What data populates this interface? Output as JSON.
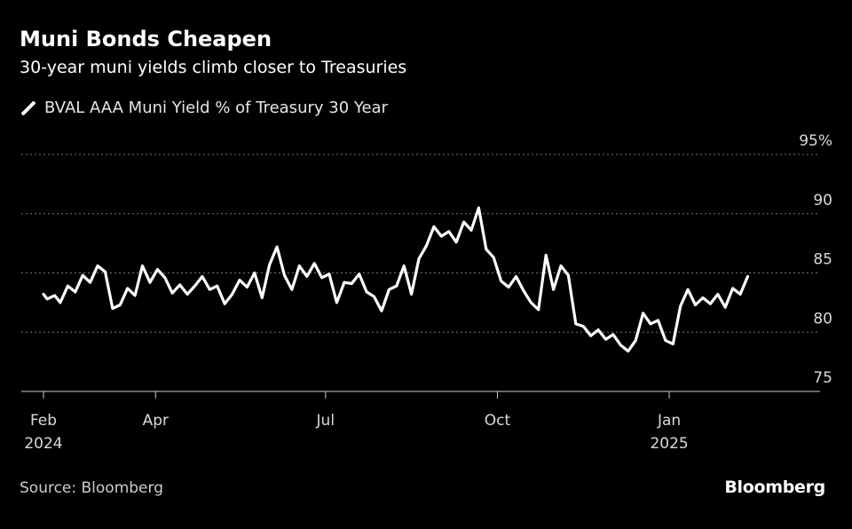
{
  "header": {
    "title": "Muni Bonds Cheapen",
    "subtitle": "30-year muni yields climb closer to Treasuries"
  },
  "legend": {
    "label": "BVAL AAA Muni Yield % of Treasury 30 Year"
  },
  "footer": {
    "source": "Source: Bloomberg",
    "brand": "Bloomberg"
  },
  "colors": {
    "background": "#000000",
    "line": "#ffffff",
    "grid": "#777777",
    "text": "#ffffff"
  },
  "chart_data": {
    "type": "line",
    "title": "Muni Bonds Cheapen",
    "subtitle": "30-year muni yields climb closer to Treasuries",
    "xlabel": "",
    "ylabel": "",
    "ylim": [
      75,
      95
    ],
    "xlim": [
      "2024-02-01",
      "2025-02-17"
    ],
    "y_ticks": [
      {
        "value": 95,
        "label": "95%"
      },
      {
        "value": 90,
        "label": "90"
      },
      {
        "value": 85,
        "label": "85"
      },
      {
        "value": 80,
        "label": "80"
      },
      {
        "value": 75,
        "label": "75"
      }
    ],
    "x_ticks": [
      {
        "date": "2024-02-01",
        "line1": "Feb",
        "line2": "2024"
      },
      {
        "date": "2024-04-01",
        "line1": "Apr",
        "line2": ""
      },
      {
        "date": "2024-07-01",
        "line1": "Jul",
        "line2": ""
      },
      {
        "date": "2024-10-01",
        "line1": "Oct",
        "line2": ""
      },
      {
        "date": "2025-01-01",
        "line1": "Jan",
        "line2": "2025"
      }
    ],
    "grid": "horizontal dotted",
    "legend_position": "top-left",
    "series": [
      {
        "name": "BVAL AAA Muni Yield % of Treasury 30 Year",
        "points": [
          [
            "2024-02-01",
            83.2
          ],
          [
            "2024-02-03",
            82.8
          ],
          [
            "2024-02-07",
            83.1
          ],
          [
            "2024-02-10",
            82.5
          ],
          [
            "2024-02-14",
            83.9
          ],
          [
            "2024-02-18",
            83.4
          ],
          [
            "2024-02-22",
            84.8
          ],
          [
            "2024-02-26",
            84.2
          ],
          [
            "2024-03-01",
            85.6
          ],
          [
            "2024-03-05",
            85.1
          ],
          [
            "2024-03-09",
            82.0
          ],
          [
            "2024-03-13",
            82.3
          ],
          [
            "2024-03-17",
            83.7
          ],
          [
            "2024-03-21",
            83.1
          ],
          [
            "2024-03-25",
            85.6
          ],
          [
            "2024-03-29",
            84.2
          ],
          [
            "2024-04-02",
            85.3
          ],
          [
            "2024-04-06",
            84.6
          ],
          [
            "2024-04-10",
            83.3
          ],
          [
            "2024-04-14",
            84.0
          ],
          [
            "2024-04-18",
            83.2
          ],
          [
            "2024-04-22",
            83.9
          ],
          [
            "2024-04-26",
            84.7
          ],
          [
            "2024-04-30",
            83.6
          ],
          [
            "2024-05-04",
            83.9
          ],
          [
            "2024-05-08",
            82.4
          ],
          [
            "2024-05-12",
            83.2
          ],
          [
            "2024-05-16",
            84.4
          ],
          [
            "2024-05-20",
            83.8
          ],
          [
            "2024-05-24",
            85.0
          ],
          [
            "2024-05-28",
            82.9
          ],
          [
            "2024-06-01",
            85.7
          ],
          [
            "2024-06-05",
            87.2
          ],
          [
            "2024-06-09",
            84.8
          ],
          [
            "2024-06-13",
            83.6
          ],
          [
            "2024-06-17",
            85.6
          ],
          [
            "2024-06-21",
            84.7
          ],
          [
            "2024-06-25",
            85.8
          ],
          [
            "2024-06-29",
            84.6
          ],
          [
            "2024-07-03",
            84.9
          ],
          [
            "2024-07-07",
            82.5
          ],
          [
            "2024-07-11",
            84.2
          ],
          [
            "2024-07-15",
            84.1
          ],
          [
            "2024-07-19",
            84.9
          ],
          [
            "2024-07-23",
            83.4
          ],
          [
            "2024-07-27",
            83.0
          ],
          [
            "2024-07-31",
            81.8
          ],
          [
            "2024-08-04",
            83.6
          ],
          [
            "2024-08-08",
            83.9
          ],
          [
            "2024-08-12",
            85.6
          ],
          [
            "2024-08-16",
            83.2
          ],
          [
            "2024-08-20",
            86.2
          ],
          [
            "2024-08-24",
            87.3
          ],
          [
            "2024-08-28",
            88.9
          ],
          [
            "2024-09-01",
            88.1
          ],
          [
            "2024-09-05",
            88.5
          ],
          [
            "2024-09-09",
            87.6
          ],
          [
            "2024-09-13",
            89.3
          ],
          [
            "2024-09-17",
            88.6
          ],
          [
            "2024-09-21",
            90.5
          ],
          [
            "2024-09-25",
            87.0
          ],
          [
            "2024-09-29",
            86.3
          ],
          [
            "2024-10-03",
            84.3
          ],
          [
            "2024-10-07",
            83.8
          ],
          [
            "2024-10-11",
            84.7
          ],
          [
            "2024-10-15",
            83.5
          ],
          [
            "2024-10-19",
            82.5
          ],
          [
            "2024-10-23",
            81.9
          ],
          [
            "2024-10-27",
            86.5
          ],
          [
            "2024-10-31",
            83.6
          ],
          [
            "2024-11-04",
            85.6
          ],
          [
            "2024-11-08",
            84.8
          ],
          [
            "2024-11-12",
            80.7
          ],
          [
            "2024-11-16",
            80.5
          ],
          [
            "2024-11-20",
            79.7
          ],
          [
            "2024-11-24",
            80.2
          ],
          [
            "2024-11-28",
            79.4
          ],
          [
            "2024-12-02",
            79.8
          ],
          [
            "2024-12-06",
            78.9
          ],
          [
            "2024-12-10",
            78.4
          ],
          [
            "2024-12-14",
            79.3
          ],
          [
            "2024-12-18",
            81.6
          ],
          [
            "2024-12-22",
            80.7
          ],
          [
            "2024-12-26",
            81.0
          ],
          [
            "2024-12-30",
            79.3
          ],
          [
            "2025-01-03",
            79.0
          ],
          [
            "2025-01-07",
            82.2
          ],
          [
            "2025-01-11",
            83.6
          ],
          [
            "2025-01-15",
            82.3
          ],
          [
            "2025-01-19",
            82.9
          ],
          [
            "2025-01-23",
            82.4
          ],
          [
            "2025-01-27",
            83.2
          ],
          [
            "2025-01-31",
            82.1
          ],
          [
            "2025-02-04",
            83.7
          ],
          [
            "2025-02-08",
            83.2
          ],
          [
            "2025-02-12",
            84.7
          ]
        ]
      }
    ]
  }
}
